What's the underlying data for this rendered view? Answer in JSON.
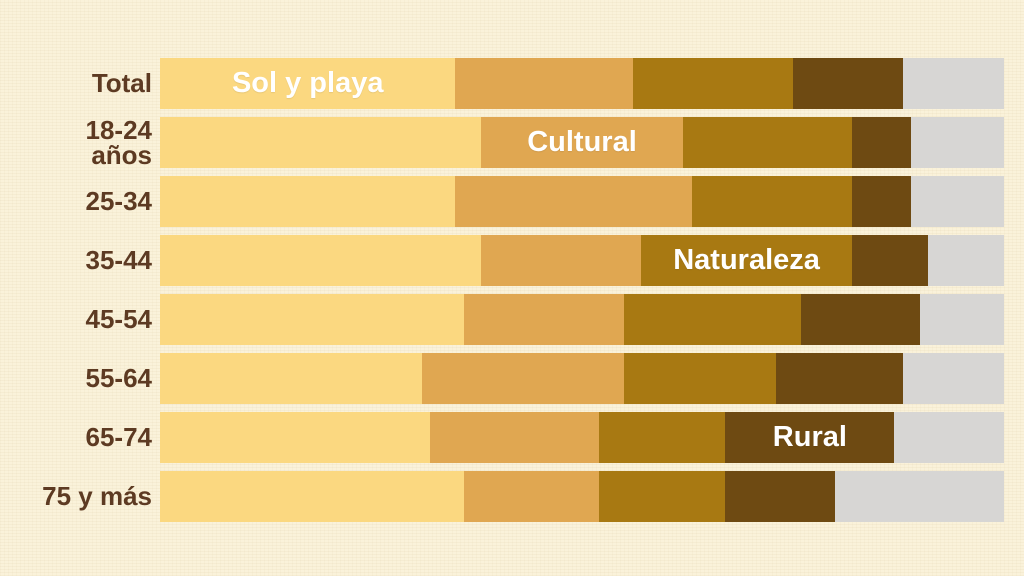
{
  "background_color": "#FAF2DA",
  "label_color": "#5D3A22",
  "inline_label_color": "#FFFFFF",
  "chart_data": {
    "type": "bar",
    "stacked": true,
    "orientation": "horizontal",
    "value_unit": "percent-of-bar (estimated from segment widths; no numeric labels shown)",
    "value_range": [
      0,
      100
    ],
    "axes": "none",
    "grid": false,
    "legend": "none (series labeled inline inside segments)",
    "categories": [
      "Total",
      "18-24 años",
      "25-34",
      "35-44",
      "45-54",
      "55-64",
      "65-74",
      "75 y más"
    ],
    "series": [
      {
        "name": "Sol y playa",
        "color": "#FBD880",
        "values": [
          35,
          38,
          35,
          38,
          36,
          31,
          32,
          36
        ]
      },
      {
        "name": "Cultural",
        "color": "#E0A751",
        "values": [
          21,
          24,
          28,
          19,
          19,
          24,
          20,
          16
        ]
      },
      {
        "name": "Naturaleza",
        "color": "#A87912",
        "values": [
          19,
          20,
          19,
          25,
          21,
          18,
          15,
          15
        ]
      },
      {
        "name": "Rural",
        "color": "#6E4A12",
        "values": [
          13,
          7,
          7,
          9,
          14,
          15,
          20,
          13
        ]
      },
      {
        "name": "",
        "color": "#D7D6D4",
        "values": [
          12,
          11,
          11,
          9,
          10,
          12,
          13,
          20
        ]
      }
    ],
    "inline_labels": [
      {
        "text": "Sol y playa",
        "category_index": 0,
        "series_index": 0
      },
      {
        "text": "Cultural",
        "category_index": 1,
        "series_index": 1
      },
      {
        "text": "Naturaleza",
        "category_index": 3,
        "series_index": 2
      },
      {
        "text": "Rural",
        "category_index": 6,
        "series_index": 3
      }
    ]
  },
  "display": {
    "category_labels": [
      "Total",
      "18-24\naños",
      "25-34",
      "35-44",
      "45-54",
      "55-64",
      "65-74",
      "75 y más"
    ]
  }
}
